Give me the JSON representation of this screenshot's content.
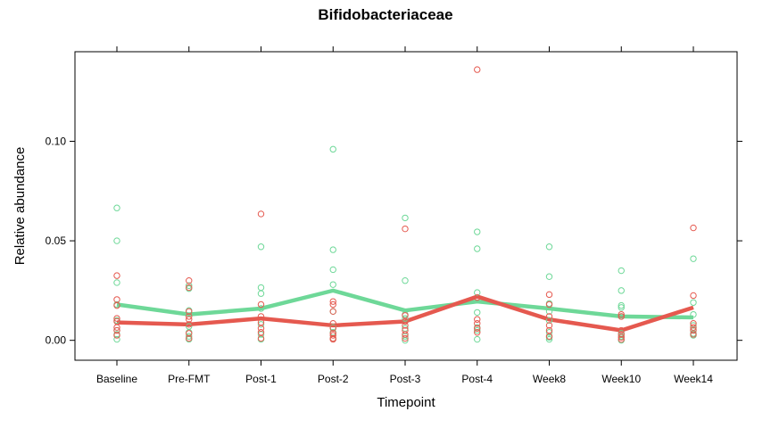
{
  "chart_data": {
    "type": "scatter",
    "title": "Bifidobacteriaceae",
    "xlabel": "Timepoint",
    "ylabel": "Relative abundance",
    "categories": [
      "Baseline",
      "Pre-FMT",
      "Post-1",
      "Post-2",
      "Post-3",
      "Post-4",
      "Week8",
      "Week10",
      "Week14"
    ],
    "ylim": [
      -0.01,
      0.145
    ],
    "yticks": [
      0.0,
      0.05,
      0.1
    ],
    "ytick_labels": [
      "0.00",
      "0.05",
      "0.10"
    ],
    "grid": false,
    "legend": "none",
    "series": [
      {
        "color": "#e5594f",
        "mean_line": [
          0.009,
          0.008,
          0.011,
          0.0075,
          0.0095,
          0.022,
          0.0105,
          0.005,
          0.0165
        ],
        "points": [
          [
            0.0325,
            0.0205,
            0.0175,
            0.011,
            0.0095,
            0.0065,
            0.005,
            0.0025
          ],
          [
            0.03,
            0.0265,
            0.0145,
            0.012,
            0.0105,
            0.008,
            0.0035,
            0.001
          ],
          [
            0.0635,
            0.018,
            0.012,
            0.009,
            0.006,
            0.004,
            0.001
          ],
          [
            0.0195,
            0.018,
            0.0145,
            0.0085,
            0.006,
            0.0035,
            0.0025,
            0.001,
            0.0005
          ],
          [
            0.056,
            0.0125,
            0.0095,
            0.0075,
            0.005,
            0.003,
            0.001
          ],
          [
            0.136,
            0.0215,
            0.0105,
            0.0085,
            0.006,
            0.004
          ],
          [
            0.023,
            0.018,
            0.012,
            0.0075,
            0.005,
            0.002
          ],
          [
            0.013,
            0.012,
            0.005,
            0.003,
            0.0015,
            0.0005
          ],
          [
            0.0565,
            0.0225,
            0.0085,
            0.0065,
            0.005,
            0.003
          ]
        ]
      },
      {
        "color": "#6ed898",
        "mean_line": [
          0.018,
          0.013,
          0.016,
          0.025,
          0.015,
          0.0195,
          0.016,
          0.012,
          0.0115
        ],
        "points": [
          [
            0.0665,
            0.05,
            0.029,
            0.018,
            0.01,
            0.005,
            0.003,
            0.0005
          ],
          [
            0.0275,
            0.026,
            0.015,
            0.007,
            0.004,
            0.002,
            0.0005
          ],
          [
            0.047,
            0.0265,
            0.0235,
            0.016,
            0.008,
            0.003,
            0.0005
          ],
          [
            0.096,
            0.0455,
            0.0355,
            0.028,
            0.0145,
            0.0065,
            0.004,
            0.001
          ],
          [
            0.0615,
            0.03,
            0.013,
            0.011,
            0.0095,
            0.006,
            0.002,
            0.0
          ],
          [
            0.0545,
            0.046,
            0.024,
            0.014,
            0.0065,
            0.005,
            0.0005
          ],
          [
            0.047,
            0.032,
            0.0185,
            0.0145,
            0.01,
            0.004,
            0.0015,
            0.0005
          ],
          [
            0.035,
            0.025,
            0.0175,
            0.0165,
            0.012,
            0.0035,
            0.002,
            0.0
          ],
          [
            0.041,
            0.019,
            0.013,
            0.0075,
            0.0055,
            0.0035,
            0.0025
          ]
        ]
      }
    ]
  }
}
